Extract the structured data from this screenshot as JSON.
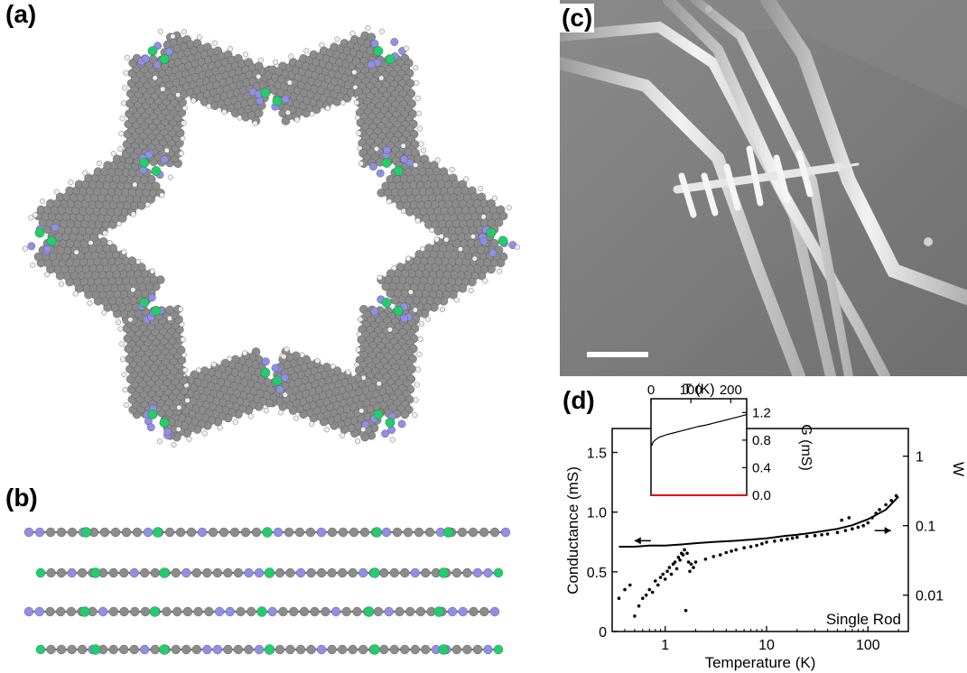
{
  "figure": {
    "panels": {
      "a": {
        "label": "(a)"
      },
      "b": {
        "label": "(b)"
      },
      "c": {
        "label": "(c)"
      },
      "d": {
        "label": "(d)"
      }
    },
    "colors": {
      "carbon": "#8c8c8c",
      "nitrogen": "#8f8fe8",
      "nickel": "#1fcf6a",
      "hydrogen": "#eeeeee",
      "sem_bg": "#7d7d7d",
      "inset_zero_line": "#e00000"
    }
  },
  "chart_data": {
    "type": "scatter",
    "title": "",
    "xlabel": "Temperature (K)",
    "ylabel": "Conductance (mS)",
    "y2label": "W",
    "xscale": "log",
    "xlim": [
      0.3,
      250
    ],
    "xticks": [
      1,
      10,
      100
    ],
    "xtick_labels": [
      "1",
      "10",
      "100"
    ],
    "ylim": [
      0,
      1.7
    ],
    "yticks": [
      0,
      0.5,
      1.0,
      1.5
    ],
    "ytick_labels": [
      "0",
      "0.5",
      "1.0",
      "1.5"
    ],
    "y2scale": "log",
    "y2lim": [
      0.003,
      2.5
    ],
    "y2ticks": [
      0.01,
      0.1,
      1
    ],
    "y2tick_labels": [
      "0.01",
      "0.1",
      "1"
    ],
    "annotation": "Single Rod",
    "series": [
      {
        "axis": "left",
        "x": [
          0.35,
          0.5,
          0.7,
          1,
          1.5,
          2,
          3,
          5,
          7,
          10,
          15,
          20,
          30,
          50,
          70,
          100,
          150,
          200
        ],
        "y": [
          0.71,
          0.71,
          0.72,
          0.72,
          0.73,
          0.74,
          0.75,
          0.76,
          0.77,
          0.78,
          0.8,
          0.81,
          0.83,
          0.86,
          0.89,
          0.94,
          1.02,
          1.13
        ]
      },
      {
        "axis": "right",
        "x": [
          0.35,
          0.4,
          0.45,
          0.5,
          0.55,
          0.6,
          0.65,
          0.7,
          0.75,
          0.8,
          0.85,
          0.9,
          0.95,
          1.0,
          1.05,
          1.1,
          1.15,
          1.2,
          1.25,
          1.3,
          1.35,
          1.4,
          1.45,
          1.5,
          1.55,
          1.6,
          1.65,
          1.7,
          1.75,
          1.8,
          1.9,
          2.0,
          2.5,
          3,
          3.5,
          4,
          4.5,
          5,
          6,
          7,
          8,
          9,
          10,
          12,
          14,
          16,
          18,
          20,
          25,
          30,
          35,
          40,
          50,
          55,
          60,
          65,
          70,
          80,
          90,
          100,
          110,
          120,
          130,
          150,
          170,
          190
        ],
        "y": [
          0.009,
          0.012,
          0.014,
          0.005,
          0.007,
          0.009,
          0.01,
          0.012,
          0.011,
          0.016,
          0.014,
          0.018,
          0.02,
          0.017,
          0.022,
          0.025,
          0.02,
          0.028,
          0.03,
          0.024,
          0.035,
          0.032,
          0.04,
          0.038,
          0.045,
          0.006,
          0.04,
          0.03,
          0.022,
          0.028,
          0.025,
          0.03,
          0.033,
          0.036,
          0.038,
          0.041,
          0.043,
          0.045,
          0.048,
          0.05,
          0.052,
          0.055,
          0.058,
          0.06,
          0.062,
          0.064,
          0.066,
          0.068,
          0.07,
          0.072,
          0.074,
          0.076,
          0.08,
          0.12,
          0.085,
          0.13,
          0.09,
          0.095,
          0.1,
          0.11,
          0.13,
          0.15,
          0.17,
          0.2,
          0.23,
          0.27
        ]
      }
    ],
    "arrows": [
      {
        "points_to": "left",
        "x": 0.6,
        "y": 0.76
      },
      {
        "points_to": "right",
        "x": 140,
        "y": 0.085
      }
    ],
    "inset": {
      "type": "line",
      "xlabel": "T (K)",
      "ylabel": "G (mS)",
      "xlim": [
        0,
        240
      ],
      "xticks": [
        0,
        100,
        200
      ],
      "xtick_labels": [
        "0",
        "100",
        "200"
      ],
      "ylim": [
        0,
        1.4
      ],
      "yticks": [
        0,
        0.4,
        0.8,
        1.2
      ],
      "ytick_labels": [
        "0.0",
        "0.4",
        "0.8",
        "1.2"
      ],
      "x": [
        2,
        5,
        10,
        20,
        40,
        60,
        80,
        100,
        120,
        140,
        160,
        180,
        200,
        220,
        240
      ],
      "y": [
        0.72,
        0.77,
        0.8,
        0.84,
        0.88,
        0.91,
        0.94,
        0.97,
        1.0,
        1.02,
        1.05,
        1.08,
        1.11,
        1.14,
        1.17
      ],
      "zero_line": 0
    }
  }
}
